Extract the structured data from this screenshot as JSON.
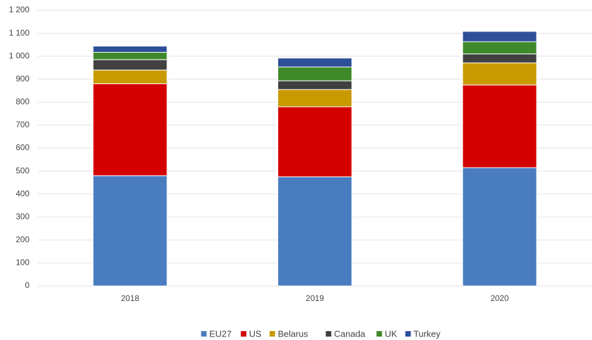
{
  "chart_data": {
    "type": "stacked_bar",
    "categories": [
      "2018",
      "2019",
      "2020"
    ],
    "series": [
      {
        "name": "EU27",
        "color": "#4a7cc0",
        "values": [
          480,
          475,
          515
        ]
      },
      {
        "name": "US",
        "color": "#d40000",
        "values": [
          400,
          305,
          360
        ]
      },
      {
        "name": "Belarus",
        "color": "#c89a00",
        "values": [
          60,
          75,
          96
        ]
      },
      {
        "name": "Canada",
        "color": "#404040",
        "values": [
          45,
          38,
          39
        ]
      },
      {
        "name": "UK",
        "color": "#3e8a2a",
        "values": [
          32,
          60,
          53
        ]
      },
      {
        "name": "Turkey",
        "color": "#2e4f9a",
        "values": [
          27,
          39,
          45
        ]
      }
    ],
    "ylim": [
      0,
      1200
    ],
    "yticks": [
      0,
      100,
      200,
      300,
      400,
      500,
      600,
      700,
      800,
      900,
      {
        "value": 1000,
        "label": "1 000"
      },
      {
        "value": 1100,
        "label": "1 100"
      },
      {
        "value": 1200,
        "label": "1 200"
      }
    ],
    "grid": true,
    "legend": "bottom"
  }
}
